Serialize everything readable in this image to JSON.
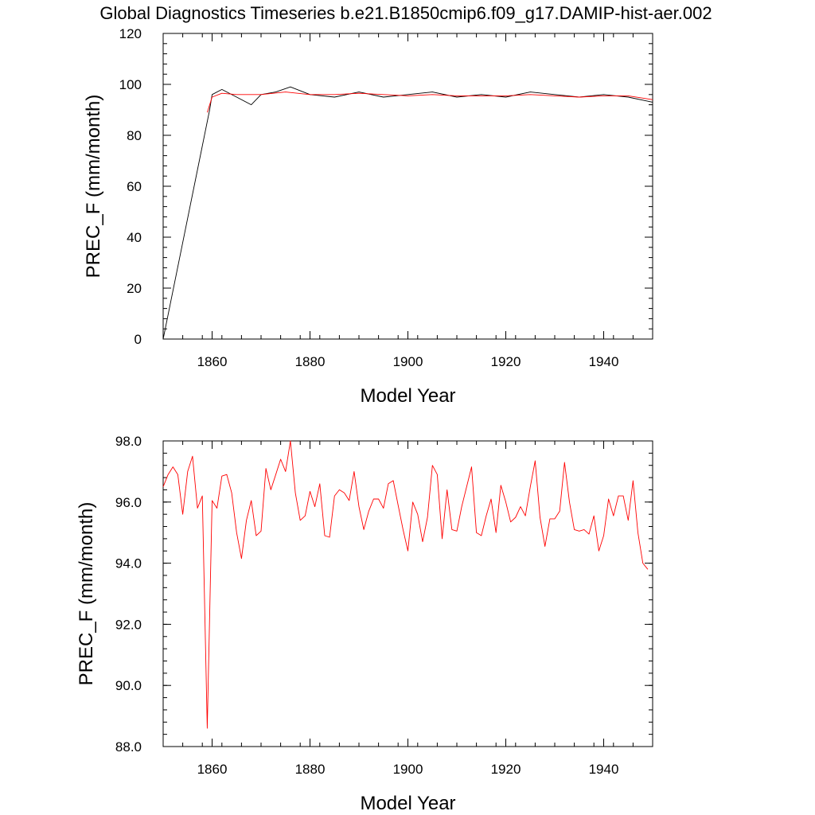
{
  "title": "Global Diagnostics Timeseries b.e21.B1850cmip6.f09_g17.DAMIP-hist-aer.002",
  "chart_data": [
    {
      "type": "line",
      "xlabel": "Model Year",
      "ylabel": "PREC_F (mm/month)",
      "xlim": [
        1850,
        1950
      ],
      "ylim": [
        0,
        120
      ],
      "xticks": [
        1860,
        1880,
        1900,
        1920,
        1940
      ],
      "xtick_labels": [
        "1860",
        "1880",
        "1900",
        "1920",
        "1940"
      ],
      "yticks": [
        0,
        20,
        40,
        60,
        80,
        100,
        120
      ],
      "ytick_labels": [
        "0",
        "20",
        "40",
        "60",
        "80",
        "100",
        "120"
      ],
      "grid": false,
      "series": [
        {
          "kind": "monthly",
          "color": "#000000",
          "x": [
            1850.0,
            1859.5,
            1860.0,
            1862.0,
            1865.0,
            1868.0,
            1870.0,
            1873.0,
            1876.0,
            1880.0,
            1885.0,
            1890.0,
            1895.0,
            1900.0,
            1905.0,
            1910.0,
            1915.0,
            1920.0,
            1925.0,
            1930.0,
            1935.0,
            1940.0,
            1945.0,
            1950.0
          ],
          "y": [
            0,
            90,
            96,
            98,
            95,
            92,
            96,
            97,
            99,
            96,
            95,
            97,
            95,
            96,
            97,
            95,
            96,
            95,
            97,
            96,
            95,
            96,
            95,
            93
          ]
        },
        {
          "kind": "annual-mean",
          "color": "#ff0000",
          "x": [
            1859.0,
            1860.0,
            1862.0,
            1865.0,
            1870.0,
            1875.0,
            1880.0,
            1885.0,
            1890.0,
            1895.0,
            1900.0,
            1905.0,
            1910.0,
            1915.0,
            1920.0,
            1925.0,
            1930.0,
            1935.0,
            1940.0,
            1945.0,
            1950.0
          ],
          "y": [
            89,
            95,
            96.5,
            96,
            96,
            97,
            96,
            96,
            96.5,
            96,
            95.5,
            96,
            95.5,
            95.5,
            95.5,
            96,
            95.5,
            95,
            95.5,
            95.5,
            94
          ]
        }
      ]
    },
    {
      "type": "line",
      "xlabel": "Model Year",
      "ylabel": "PREC_F (mm/month)",
      "xlim": [
        1850,
        1950
      ],
      "ylim": [
        88,
        98
      ],
      "xticks": [
        1860,
        1880,
        1900,
        1920,
        1940
      ],
      "xtick_labels": [
        "1860",
        "1880",
        "1900",
        "1920",
        "1940"
      ],
      "yticks": [
        88,
        90,
        92,
        94,
        96,
        98
      ],
      "ytick_labels": [
        "88.0",
        "90.0",
        "92.0",
        "94.0",
        "96.0",
        "98.0"
      ],
      "grid": false,
      "series": [
        {
          "kind": "annual-mean",
          "color": "#ff0000",
          "x": [
            1850,
            1851,
            1852,
            1853,
            1854,
            1855,
            1856,
            1857,
            1858,
            1859,
            1860,
            1861,
            1862,
            1863,
            1864,
            1865,
            1866,
            1867,
            1868,
            1869,
            1870,
            1871,
            1872,
            1873,
            1874,
            1875,
            1876,
            1877,
            1878,
            1879,
            1880,
            1881,
            1882,
            1883,
            1884,
            1885,
            1886,
            1887,
            1888,
            1889,
            1890,
            1891,
            1892,
            1893,
            1894,
            1895,
            1896,
            1897,
            1898,
            1899,
            1900,
            1901,
            1902,
            1903,
            1904,
            1905,
            1906,
            1907,
            1908,
            1909,
            1910,
            1911,
            1912,
            1913,
            1914,
            1915,
            1916,
            1917,
            1918,
            1919,
            1920,
            1921,
            1922,
            1923,
            1924,
            1925,
            1926,
            1927,
            1928,
            1929,
            1930,
            1931,
            1932,
            1933,
            1934,
            1935,
            1936,
            1937,
            1938,
            1939,
            1940,
            1941,
            1942,
            1943,
            1944,
            1945,
            1946,
            1947,
            1948,
            1949
          ],
          "y": [
            96.5,
            96.9,
            97.15,
            96.9,
            95.6,
            97.0,
            97.5,
            95.8,
            96.2,
            88.6,
            96.05,
            95.8,
            96.85,
            96.9,
            96.3,
            95.0,
            94.15,
            95.4,
            96.05,
            94.9,
            95.05,
            97.1,
            96.4,
            96.9,
            97.4,
            97.0,
            98.0,
            96.3,
            95.4,
            95.55,
            96.35,
            95.85,
            96.6,
            94.9,
            94.85,
            96.2,
            96.4,
            96.3,
            96.05,
            97.0,
            95.85,
            95.1,
            95.7,
            96.1,
            96.1,
            95.8,
            96.6,
            96.7,
            95.9,
            95.1,
            94.4,
            96.0,
            95.6,
            94.7,
            95.5,
            97.2,
            96.9,
            94.8,
            96.4,
            95.1,
            95.05,
            95.85,
            96.5,
            97.15,
            95.0,
            94.9,
            95.55,
            96.1,
            95.0,
            96.55,
            96.0,
            95.35,
            95.5,
            95.85,
            95.55,
            96.5,
            97.35,
            95.5,
            94.55,
            95.45,
            95.45,
            95.7,
            97.3,
            96.0,
            95.1,
            95.05,
            95.1,
            94.95,
            95.55,
            94.4,
            94.9,
            96.1,
            95.55,
            96.2,
            96.2,
            95.4,
            96.7,
            95.0,
            94.0,
            93.8
          ]
        }
      ]
    }
  ]
}
